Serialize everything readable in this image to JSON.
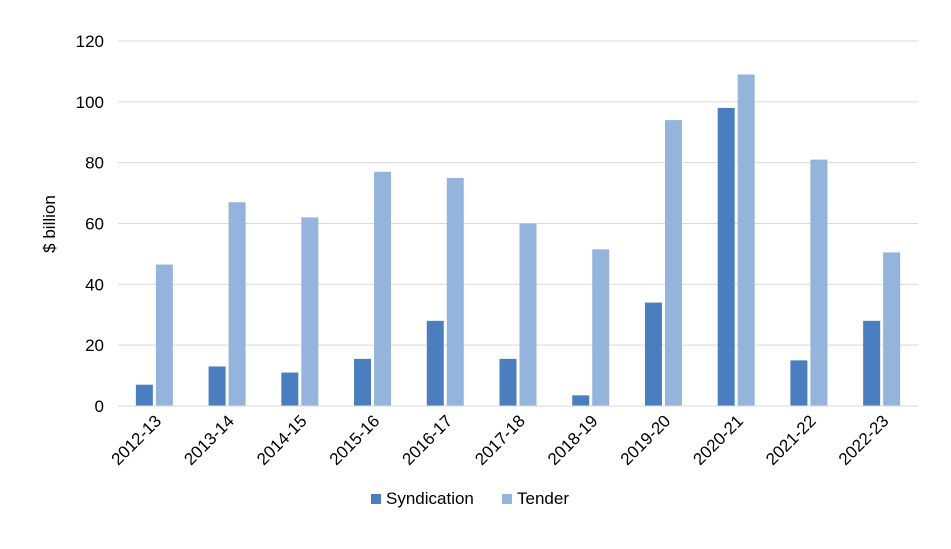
{
  "chart_data": {
    "type": "bar",
    "title": "",
    "xlabel": "",
    "ylabel": "$ billion",
    "ylim": [
      0,
      120
    ],
    "yticks": [
      0,
      20,
      40,
      60,
      80,
      100,
      120
    ],
    "grid": true,
    "legend_position": "bottom",
    "categories": [
      "2012-13",
      "2013-14",
      "2014-15",
      "2015-16",
      "2016-17",
      "2017-18",
      "2018-19",
      "2019-20",
      "2020-21",
      "2021-22",
      "2022-23"
    ],
    "series": [
      {
        "name": "Syndication",
        "color": "#4a7ebf",
        "values": [
          7,
          13,
          11,
          15.5,
          28,
          15.5,
          3.5,
          34,
          98,
          15,
          28
        ]
      },
      {
        "name": "Tender",
        "color": "#95b4db",
        "values": [
          46.5,
          67,
          62,
          77,
          75,
          60,
          51.5,
          94,
          109,
          81,
          50.5
        ]
      }
    ]
  }
}
